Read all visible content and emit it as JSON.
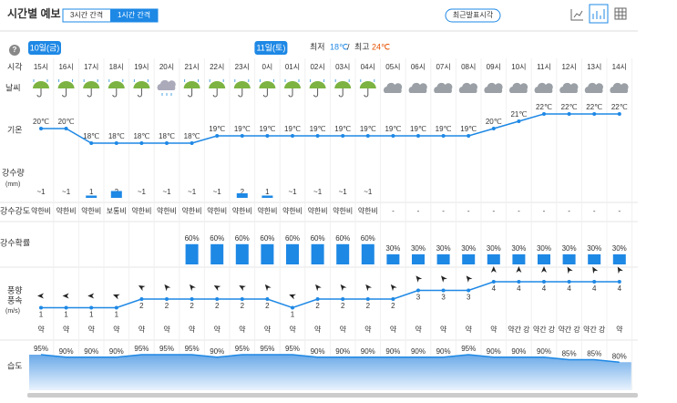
{
  "header": {
    "title": "시간별 예보",
    "tabs": [
      "3시간 간격",
      "1시간 간격"
    ],
    "button": "최근발표시각"
  },
  "help": "?",
  "dates": [
    "10일(금)",
    "11일(토)"
  ],
  "summary": {
    "min_label": "최저",
    "min": "18℃",
    "sep": "/",
    "max_label": "최고",
    "max": "24℃"
  },
  "row_labels": {
    "time": "시각",
    "weather": "날씨",
    "temp": "기온",
    "precip": "강수량",
    "precip_unit": "(mm)",
    "intensity": "강수강도",
    "prob": "강수확률",
    "wind1": "풍향",
    "wind2": "풍속",
    "wind_unit": "(m/s)",
    "humidity": "습도"
  },
  "hours": [
    "15시",
    "16시",
    "17시",
    "18시",
    "19시",
    "20시",
    "21시",
    "22시",
    "23시",
    "0시",
    "01시",
    "02시",
    "03시",
    "04시",
    "05시",
    "06시",
    "07시",
    "08시",
    "09시",
    "10시",
    "11시",
    "12시",
    "13시",
    "14시"
  ],
  "temperature": {
    "values": [
      20,
      20,
      18,
      18,
      18,
      18,
      18,
      19,
      19,
      19,
      19,
      19,
      19,
      19,
      19,
      19,
      19,
      19,
      20,
      21,
      22,
      22,
      22,
      22
    ],
    "value_labels": [
      "20℃",
      "20℃",
      "18℃",
      "18℃",
      "18℃",
      "18℃",
      "18℃",
      "19℃",
      "19℃",
      "19℃",
      "19℃",
      "19℃",
      "19℃",
      "19℃",
      "19℃",
      "19℃",
      "19℃",
      "19℃",
      "20℃",
      "21℃",
      "22℃",
      "22℃",
      "22℃",
      "22℃"
    ]
  },
  "precip": {
    "values": [
      null,
      null,
      1,
      3,
      null,
      null,
      null,
      null,
      2,
      1,
      null,
      null,
      null,
      null,
      null,
      null,
      null,
      null,
      null,
      null,
      null,
      null,
      null,
      null
    ],
    "value_labels": [
      "~1",
      "~1",
      "1",
      "3",
      "~1",
      "~1",
      "~1",
      "~1",
      "2",
      "1",
      "~1",
      "~1",
      "~1",
      "~1",
      null,
      null,
      null,
      null,
      null,
      null,
      null,
      null,
      null,
      null
    ]
  },
  "intensity": [
    "약한비",
    "약한비",
    "약한비",
    "보통비",
    "약한비",
    "약한비",
    "약한비",
    "약한비",
    "약한비",
    "약한비",
    "약한비",
    "약한비",
    "약한비",
    "약한비",
    "-",
    "-",
    "-",
    "-",
    "-",
    "-",
    "-",
    "-",
    "-",
    "-"
  ],
  "probability": {
    "values": [
      null,
      null,
      null,
      null,
      null,
      null,
      60,
      60,
      60,
      60,
      60,
      60,
      60,
      60,
      30,
      30,
      30,
      30,
      30,
      30,
      30,
      30,
      30,
      30
    ],
    "value_labels": [
      null,
      null,
      null,
      null,
      null,
      null,
      "60%",
      "60%",
      "60%",
      "60%",
      "60%",
      "60%",
      "60%",
      "60%",
      "30%",
      "30%",
      "30%",
      "30%",
      "30%",
      "30%",
      "30%",
      "30%",
      "30%",
      "30%"
    ]
  },
  "wind": {
    "speed": [
      1,
      1,
      1,
      1,
      2,
      2,
      2,
      2,
      2,
      2,
      1,
      2,
      2,
      2,
      2,
      3,
      3,
      3,
      4,
      4,
      4,
      4,
      4,
      4
    ],
    "direction_deg": [
      270,
      270,
      270,
      290,
      300,
      320,
      320,
      300,
      300,
      320,
      290,
      320,
      320,
      320,
      320,
      320,
      320,
      320,
      0,
      0,
      0,
      330,
      330,
      330
    ],
    "strength": [
      "약",
      "약",
      "약",
      "약",
      "약",
      "약",
      "약",
      "약",
      "약",
      "약",
      "약",
      "약",
      "약",
      "약",
      "약",
      "약",
      "약",
      "약",
      "약",
      "약간 강",
      "약간 강",
      "약간 강",
      "약간 강",
      "약"
    ]
  },
  "humidity": {
    "values": [
      95,
      90,
      90,
      90,
      95,
      95,
      95,
      90,
      95,
      95,
      95,
      90,
      90,
      90,
      90,
      90,
      90,
      95,
      90,
      90,
      90,
      85,
      85,
      80
    ],
    "value_labels": [
      "95%",
      "90%",
      "90%",
      "90%",
      "95%",
      "95%",
      "95%",
      "90%",
      "95%",
      "95%",
      "95%",
      "90%",
      "90%",
      "90%",
      "90%",
      "90%",
      "90%",
      "95%",
      "90%",
      "90%",
      "90%",
      "85%",
      "85%",
      "80%"
    ]
  }
}
